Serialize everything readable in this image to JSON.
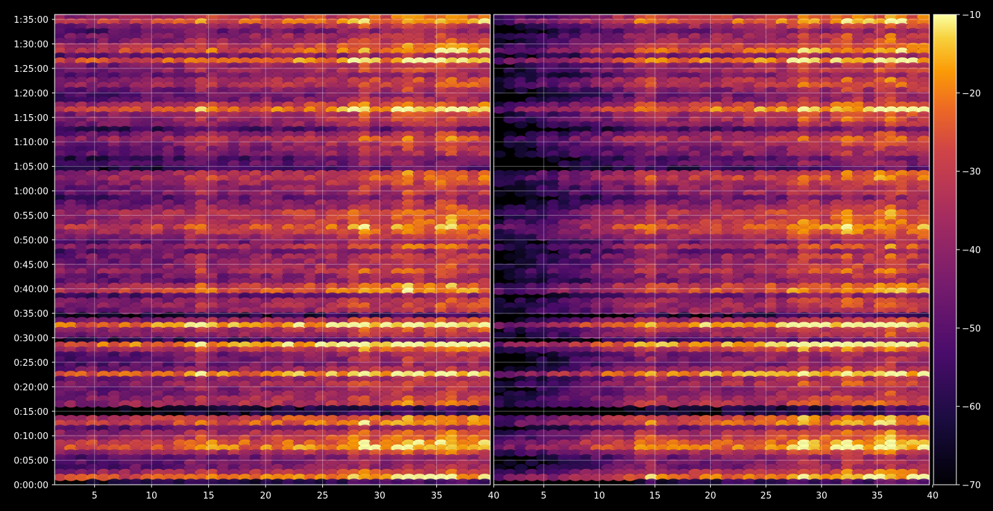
{
  "chart_data": {
    "type": "heatmap",
    "title": "",
    "layout": "two side-by-side panels sharing the y axis, colorbar on the right",
    "background": "#000000",
    "grid": true,
    "colormap": "inferno",
    "colorbar": {
      "min": -70,
      "max": -10,
      "ticks": [
        "−10",
        "−20",
        "−30",
        "−40",
        "−50",
        "−60",
        "−70"
      ],
      "tick_values": [
        -10,
        -20,
        -30,
        -40,
        -50,
        -60,
        -70
      ]
    },
    "y_axis": {
      "label": "",
      "range_seconds": [
        0,
        5760
      ],
      "ticks": [
        "0:00:00",
        "0:05:00",
        "0:10:00",
        "0:15:00",
        "0:20:00",
        "0:25:00",
        "0:30:00",
        "0:35:00",
        "0:40:00",
        "0:45:00",
        "0:50:00",
        "0:55:00",
        "1:00:00",
        "1:05:00",
        "1:10:00",
        "1:15:00",
        "1:20:00",
        "1:25:00",
        "1:30:00",
        "1:35:00"
      ]
    },
    "panels": [
      {
        "name": "",
        "x_range": [
          1.5,
          39.7
        ],
        "x_ticks": [
          "5",
          "10",
          "15",
          "20",
          "25",
          "30",
          "35",
          "40"
        ],
        "x_tick_values": [
          5,
          10,
          15,
          20,
          25,
          30,
          35,
          40
        ]
      },
      {
        "name": "",
        "x_range": [
          0.5,
          39.7
        ],
        "x_ticks": [
          "5",
          "10",
          "15",
          "20",
          "25",
          "30",
          "35",
          "40"
        ],
        "x_tick_values": [
          5,
          10,
          15,
          20,
          25,
          30,
          35,
          40
        ]
      }
    ],
    "hot_rows_time": [
      "0:51:30",
      "0:40:00",
      "0:32:00",
      "0:28:00",
      "0:17:00",
      "0:09:00",
      "0:07:00",
      "1:20:00",
      "1:02:00",
      "1:34:00",
      "1:28:00",
      "1:10:00"
    ],
    "hot_columns": [
      14.5,
      28.5,
      32.5,
      36.0
    ]
  }
}
